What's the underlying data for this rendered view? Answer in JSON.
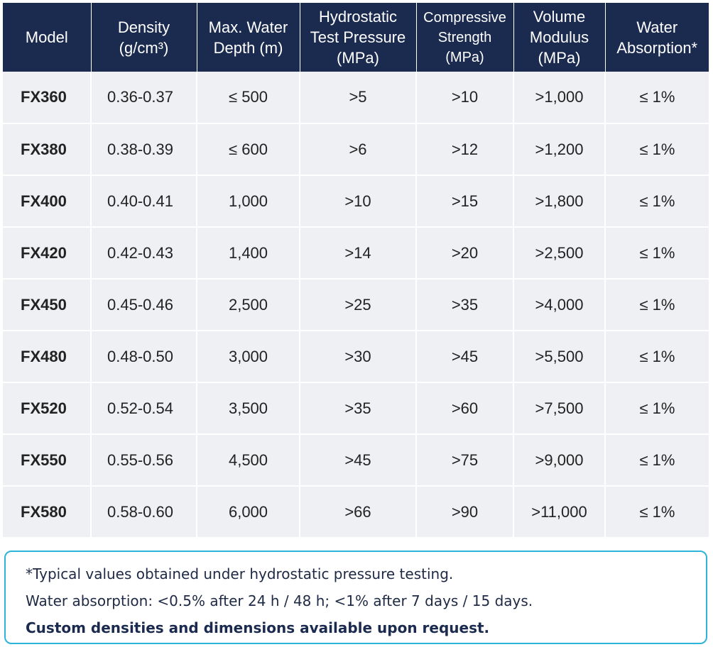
{
  "table": {
    "headers": [
      {
        "lines": [
          "Model"
        ]
      },
      {
        "lines": [
          "Density",
          "(g/cm³)"
        ]
      },
      {
        "lines": [
          "Max. Water",
          "Depth (m)"
        ]
      },
      {
        "lines": [
          "Hydrostatic",
          "Test Pressure",
          "(MPa)"
        ]
      },
      {
        "lines": [
          "Compressive",
          "Strength",
          "(MPa)"
        ]
      },
      {
        "lines": [
          "Volume",
          "Modulus",
          "(MPa)"
        ]
      },
      {
        "lines": [
          "Water",
          "Absorption*"
        ]
      }
    ],
    "rows": [
      [
        "FX360",
        "0.36-0.37",
        "≤ 500",
        ">5",
        ">10",
        ">1,000",
        "≤ 1%"
      ],
      [
        "FX380",
        "0.38-0.39",
        "≤ 600",
        ">6",
        ">12",
        ">1,200",
        "≤ 1%"
      ],
      [
        "FX400",
        "0.40-0.41",
        "1,000",
        ">10",
        ">15",
        ">1,800",
        "≤ 1%"
      ],
      [
        "FX420",
        "0.42-0.43",
        "1,400",
        ">14",
        ">20",
        ">2,500",
        "≤ 1%"
      ],
      [
        "FX450",
        "0.45-0.46",
        "2,500",
        ">25",
        ">35",
        ">4,000",
        "≤ 1%"
      ],
      [
        "FX480",
        "0.48-0.50",
        "3,000",
        ">30",
        ">45",
        ">5,500",
        "≤ 1%"
      ],
      [
        "FX520",
        "0.52-0.54",
        "3,500",
        ">35",
        ">60",
        ">7,500",
        "≤ 1%"
      ],
      [
        "FX550",
        "0.55-0.56",
        "4,500",
        ">45",
        ">75",
        ">9,000",
        "≤ 1%"
      ],
      [
        "FX580",
        "0.58-0.60",
        "6,000",
        ">66",
        ">90",
        ">11,000",
        "≤ 1%"
      ]
    ]
  },
  "notes": {
    "line1": "*Typical values obtained under hydrostatic pressure testing.",
    "line2": "Water absorption: <0.5% after 24 h / 48 h; <1% after 7 days / 15 days.",
    "line3": "Custom densities and dimensions available upon request."
  },
  "colors": {
    "header_bg": "#1b2a4f",
    "header_text": "#ffffff",
    "cell_bg": "#eef0f3",
    "note_border": "#2bb5d8"
  }
}
